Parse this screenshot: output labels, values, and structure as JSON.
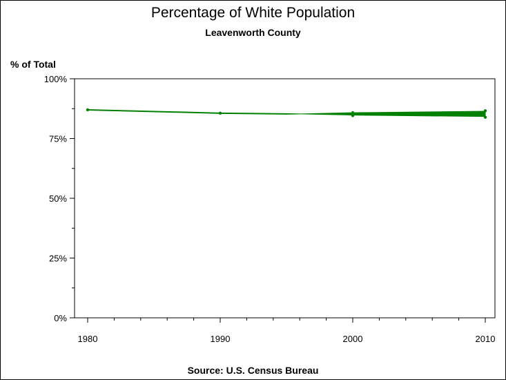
{
  "chart_data": {
    "type": "line",
    "title": "Percentage of White Population",
    "subtitle": "Leavenworth County",
    "ylabel": "% of Total",
    "xlabel": "",
    "source": "Source: U.S. Census Bureau",
    "x_ticks": [
      "1980",
      "1990",
      "2000",
      "2010"
    ],
    "y_ticks": [
      "0%",
      "25%",
      "50%",
      "75%",
      "100%"
    ],
    "xlim": [
      1980,
      2010
    ],
    "ylim": [
      0,
      100
    ],
    "line_color": "#008000",
    "series": [
      {
        "points": [
          {
            "x": 1980,
            "y": 87.0
          },
          {
            "x": 1990,
            "y": 85.6
          },
          {
            "x": 2000,
            "y": 84.6
          },
          {
            "x": 2000,
            "y": 85.8
          },
          {
            "x": 2010,
            "y": 83.9
          },
          {
            "x": 2010,
            "y": 86.6
          }
        ]
      }
    ],
    "uncertainty_band": {
      "x_start": 1995,
      "x_end": 2010,
      "lower": 84.2,
      "upper": 86.4
    }
  }
}
